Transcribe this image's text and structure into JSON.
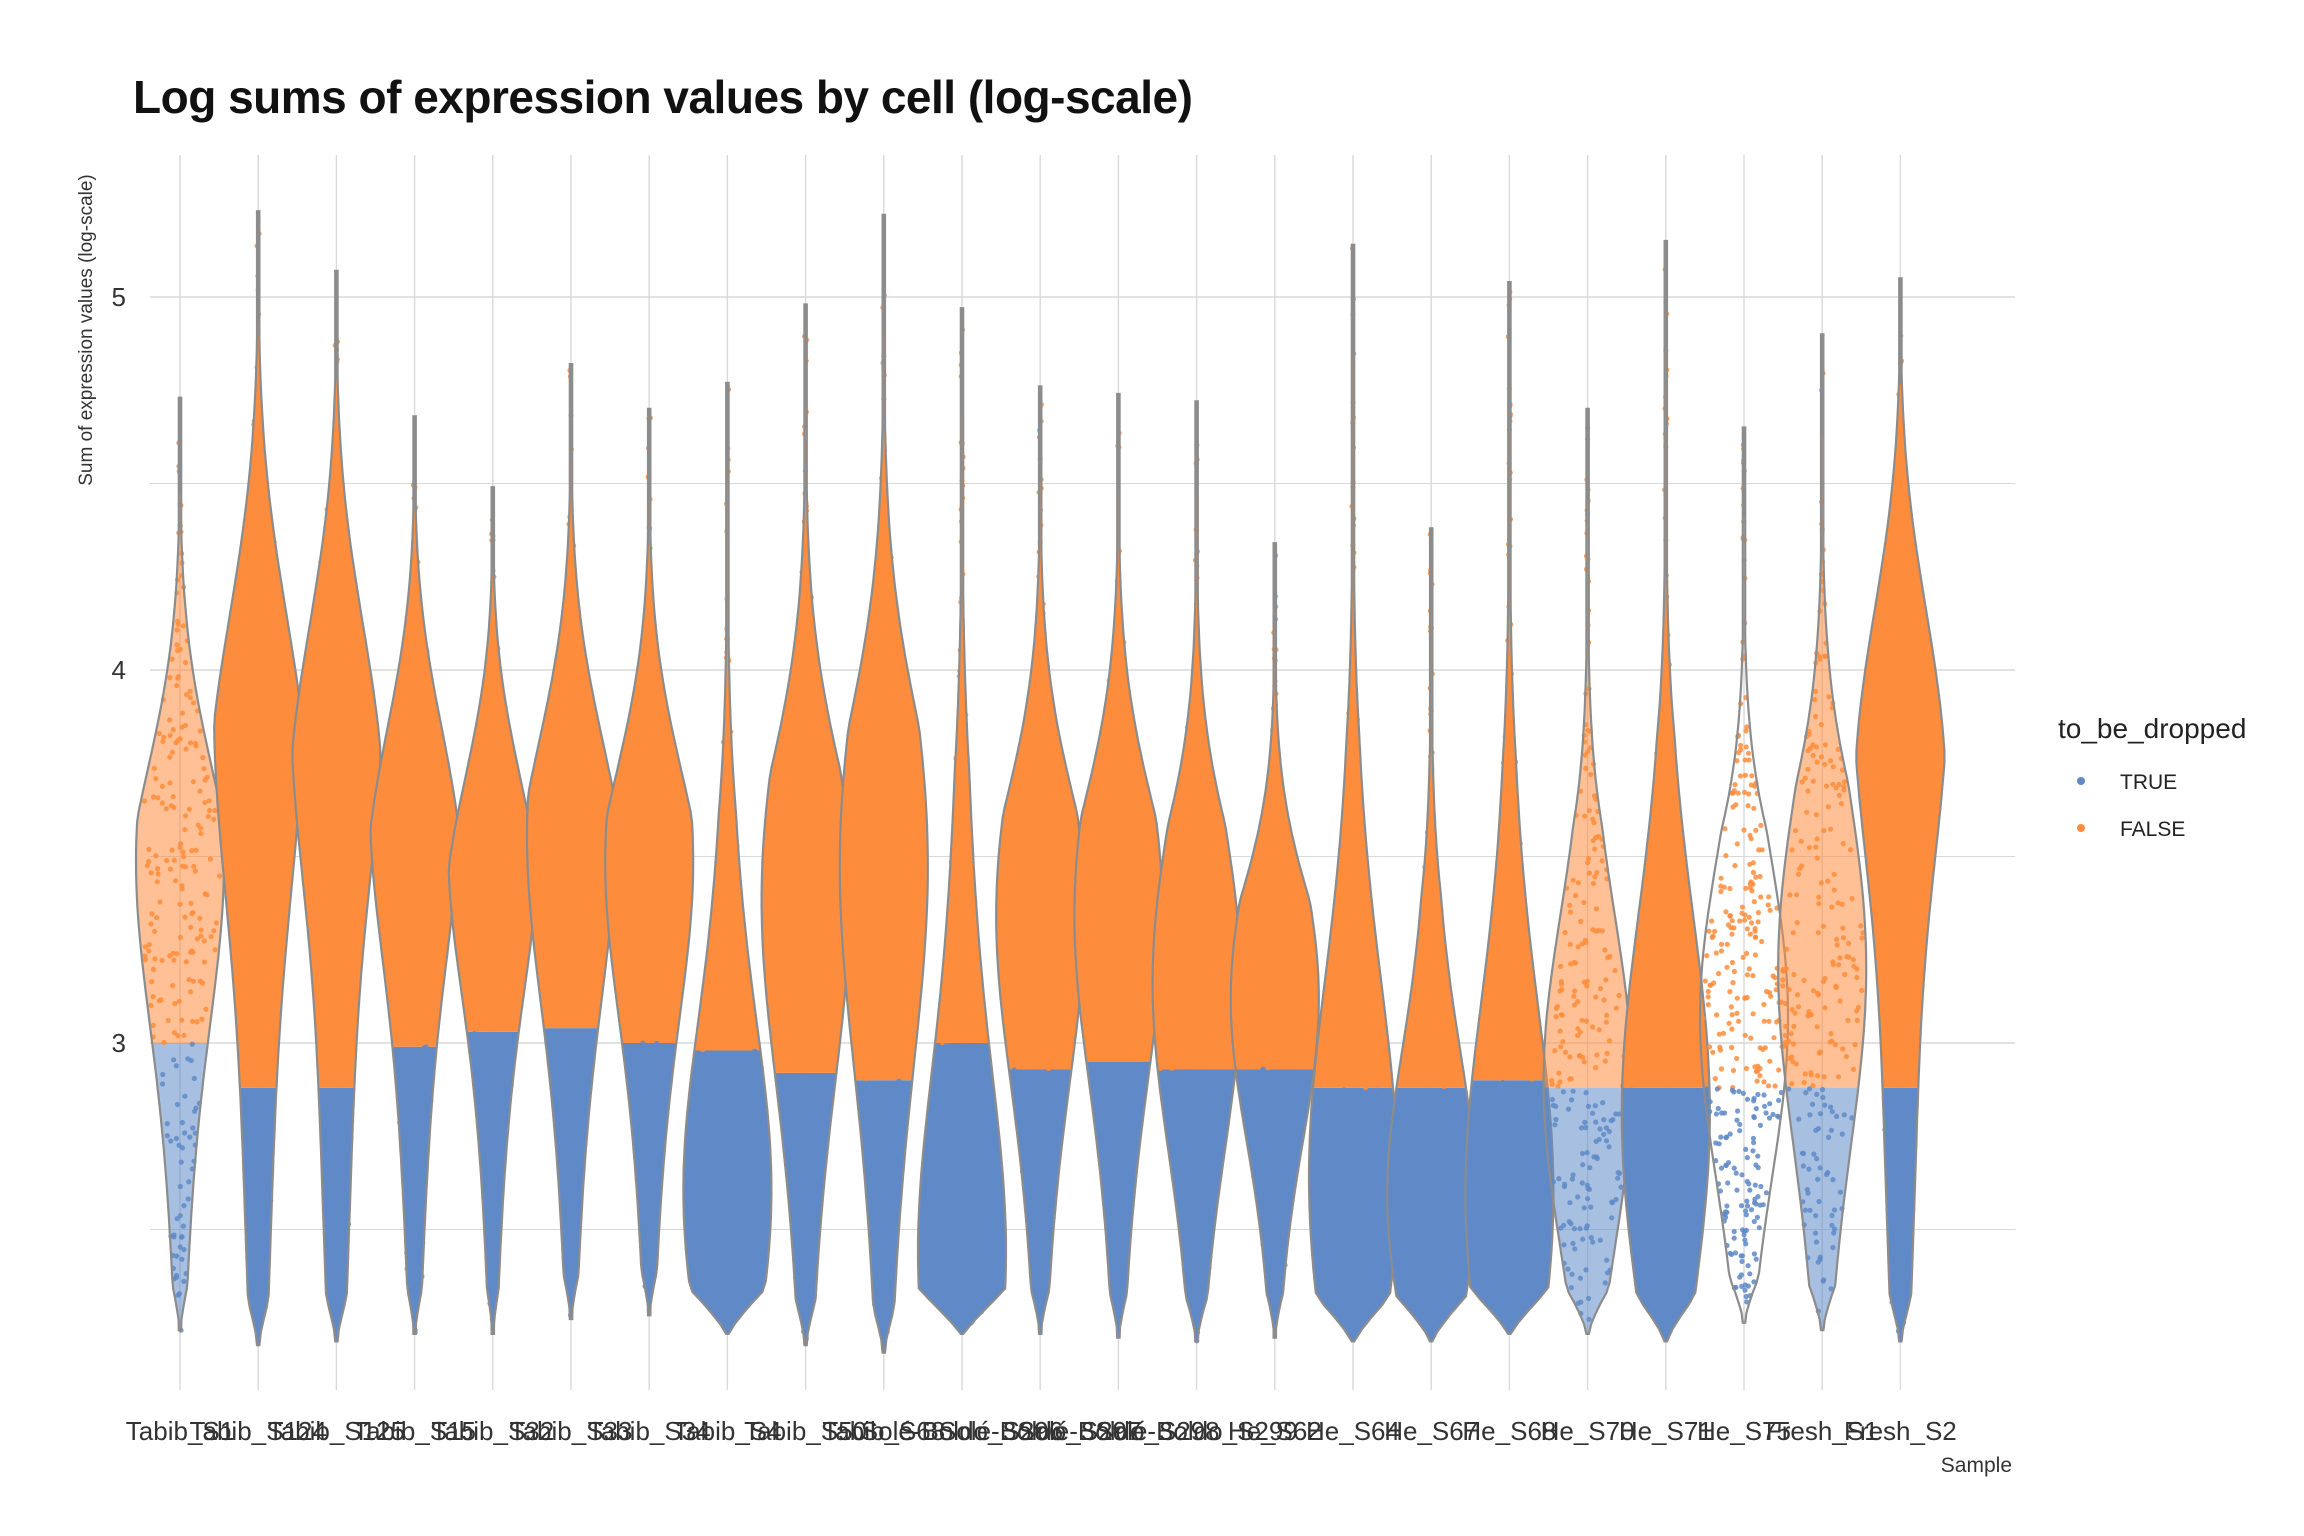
{
  "chart_data": {
    "type": "violin",
    "title": "Log sums of expression values by cell (log-scale)",
    "xlabel": "Sample",
    "ylabel": "Sum of expression values (log-scale)",
    "ylim": [
      2.1,
      5.4
    ],
    "y_ticks": [
      3,
      4,
      5
    ],
    "grid": true,
    "legend": {
      "title": "to_be_dropped",
      "placement": "right",
      "entries": [
        {
          "label": "TRUE",
          "color": "#5F8AC7"
        },
        {
          "label": "FALSE",
          "color": "#FD8D3C"
        }
      ]
    },
    "colors": {
      "true": "#5F8AC7",
      "false": "#FD8D3C",
      "outline": "#8C8C8C",
      "grid": "#D9D9D9"
    },
    "categories": [
      "Tabib_S1",
      "Tabib_S124",
      "Tabib_S125",
      "Tabib_S15",
      "Tabib_S32",
      "Tabib_S33",
      "Tabib_S34",
      "Tabib_S4",
      "Tabib_S50",
      "Tabib_S68",
      "Solé-Boldo_S296",
      "Solé-Boldo_S297",
      "Solé-Boldo_S298",
      "Solé-Boldo_S299",
      "He_S62",
      "He_S64",
      "He_S67",
      "He_S68",
      "He_S70",
      "He_S71",
      "He_S75",
      "Fresh_S1",
      "Fresh_S2"
    ],
    "violins": [
      {
        "sample": "Tabib_S1",
        "min": 2.23,
        "max": 4.73,
        "threshold": 3.0,
        "peak": 3.55,
        "density": "sparse"
      },
      {
        "sample": "Tabib_S124",
        "min": 2.19,
        "max": 5.23,
        "threshold": 2.88,
        "peak": 3.95,
        "density": "dense"
      },
      {
        "sample": "Tabib_S125",
        "min": 2.2,
        "max": 5.07,
        "threshold": 2.88,
        "peak": 3.95,
        "density": "dense"
      },
      {
        "sample": "Tabib_S15",
        "min": 2.22,
        "max": 4.68,
        "threshold": 2.99,
        "peak": 3.7,
        "density": "dense"
      },
      {
        "sample": "Tabib_S32",
        "min": 2.22,
        "max": 4.49,
        "threshold": 3.03,
        "peak": 3.58,
        "density": "dense"
      },
      {
        "sample": "Tabib_S33",
        "min": 2.26,
        "max": 4.82,
        "threshold": 3.04,
        "peak": 3.62,
        "density": "dense"
      },
      {
        "sample": "Tabib_S34",
        "min": 2.27,
        "max": 4.7,
        "threshold": 3.0,
        "peak": 3.55,
        "density": "dense"
      },
      {
        "sample": "Tabib_S4",
        "min": 2.22,
        "max": 4.77,
        "threshold": 2.98,
        "peak": 2.55,
        "density": "dense"
      },
      {
        "sample": "Tabib_S50",
        "min": 2.19,
        "max": 4.98,
        "threshold": 2.92,
        "peak": 3.45,
        "density": "dense"
      },
      {
        "sample": "Tabib_S68",
        "min": 2.17,
        "max": 5.22,
        "threshold": 2.9,
        "peak": 3.55,
        "density": "dense"
      },
      {
        "sample": "Solé-Boldo_S296",
        "min": 2.22,
        "max": 4.97,
        "threshold": 3.0,
        "peak": 2.37,
        "density": "dense"
      },
      {
        "sample": "Solé-Boldo_S297",
        "min": 2.22,
        "max": 4.76,
        "threshold": 2.93,
        "peak": 3.4,
        "density": "dense"
      },
      {
        "sample": "Solé-Boldo_S298",
        "min": 2.21,
        "max": 4.74,
        "threshold": 2.95,
        "peak": 3.4,
        "density": "dense"
      },
      {
        "sample": "Solé-Boldo_S299",
        "min": 2.2,
        "max": 4.72,
        "threshold": 2.93,
        "peak": 3.2,
        "density": "dense"
      },
      {
        "sample": "He_S62",
        "min": 2.21,
        "max": 4.34,
        "threshold": 2.93,
        "peak": 3.15,
        "density": "dense"
      },
      {
        "sample": "He_S64",
        "min": 2.2,
        "max": 5.14,
        "threshold": 2.88,
        "peak": 2.6,
        "density": "dense"
      },
      {
        "sample": "He_S67",
        "min": 2.2,
        "max": 4.38,
        "threshold": 2.88,
        "peak": 2.55,
        "density": "dense"
      },
      {
        "sample": "He_S68",
        "min": 2.22,
        "max": 5.04,
        "threshold": 2.9,
        "peak": 2.55,
        "density": "dense"
      },
      {
        "sample": "He_S70",
        "min": 2.22,
        "max": 4.7,
        "threshold": 2.88,
        "peak": 2.9,
        "density": "sparse"
      },
      {
        "sample": "He_S71",
        "min": 2.2,
        "max": 5.15,
        "threshold": 2.88,
        "peak": 2.8,
        "density": "dense"
      },
      {
        "sample": "He_S75",
        "min": 2.25,
        "max": 4.65,
        "threshold": 2.88,
        "peak": 3.1,
        "density": "very-sparse"
      },
      {
        "sample": "Fresh_S1",
        "min": 2.23,
        "max": 4.9,
        "threshold": 2.88,
        "peak": 3.25,
        "density": "sparse"
      },
      {
        "sample": "Fresh_S2",
        "min": 2.2,
        "max": 5.05,
        "threshold": 2.88,
        "peak": 4.0,
        "density": "dense"
      }
    ]
  }
}
